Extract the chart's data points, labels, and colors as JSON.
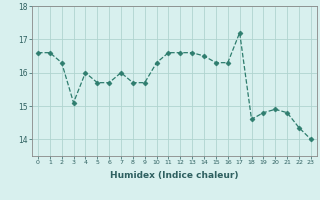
{
  "x": [
    0,
    1,
    2,
    3,
    4,
    5,
    6,
    7,
    8,
    9,
    10,
    11,
    12,
    13,
    14,
    15,
    16,
    17,
    18,
    19,
    20,
    21,
    22,
    23
  ],
  "y": [
    16.6,
    16.6,
    16.3,
    15.1,
    16.0,
    15.7,
    15.7,
    16.0,
    15.7,
    15.7,
    16.3,
    16.6,
    16.6,
    16.6,
    16.5,
    16.3,
    16.3,
    17.2,
    14.6,
    14.8,
    14.9,
    14.8,
    14.35,
    14.0
  ],
  "line_color": "#2e7d6e",
  "marker": "D",
  "marker_size": 2.5,
  "background_color": "#d8f0ee",
  "grid_color": "#b0d4cf",
  "xlabel": "Humidex (Indice chaleur)",
  "yticks": [
    14,
    15,
    16,
    17,
    18
  ],
  "ylim": [
    13.5,
    18.0
  ],
  "xlim": [
    -0.5,
    23.5
  ]
}
